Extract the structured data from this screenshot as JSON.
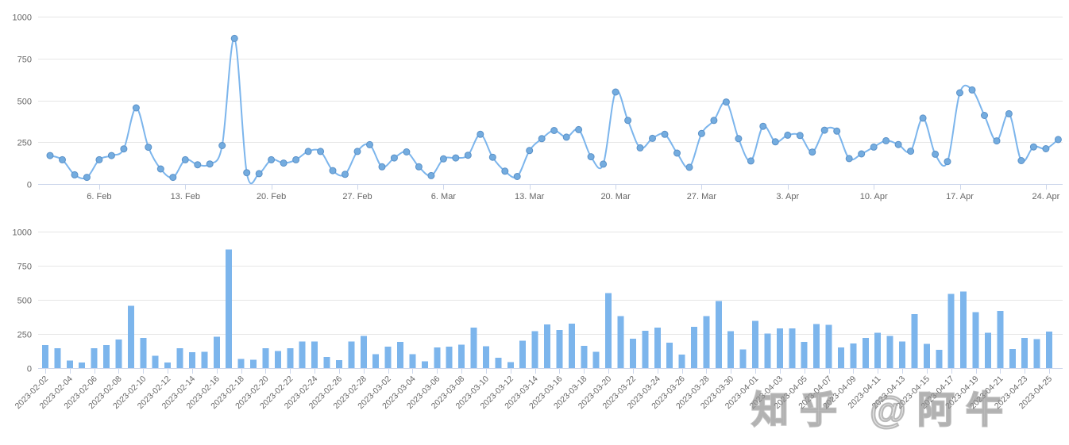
{
  "watermark": {
    "text": "知乎 @阿牛"
  },
  "colors": {
    "series_line": "#7cb5ec",
    "marker_fill": "#74acdf",
    "marker_stroke": "#5a91c8",
    "bar_fill": "#7cb5ec",
    "gridline": "#e6e6e6",
    "axis_line": "#ccd6eb",
    "tick_label": "#666666",
    "background": "#ffffff",
    "watermark_gray": "#9e9e9e"
  },
  "chart_data": [
    {
      "type": "line",
      "title": "",
      "smooth": true,
      "marker": "circle",
      "legend_position": "none",
      "grid": true,
      "ylim": [
        0,
        1000
      ],
      "yticks": [
        0,
        250,
        500,
        750,
        1000
      ],
      "ytick_labels": [
        "0",
        "250",
        "500",
        "750",
        "1000"
      ],
      "xtick_labels": [
        "6. Feb",
        "13. Feb",
        "20. Feb",
        "27. Feb",
        "6. Mar",
        "13. Mar",
        "20. Mar",
        "27. Mar",
        "3. Apr",
        "10. Apr",
        "17. Apr",
        "24. Apr"
      ],
      "xtick_day_indices": [
        4,
        11,
        18,
        25,
        32,
        39,
        46,
        53,
        60,
        67,
        74,
        81
      ],
      "dates": [
        "2023-02-02",
        "2023-02-03",
        "2023-02-04",
        "2023-02-05",
        "2023-02-06",
        "2023-02-07",
        "2023-02-08",
        "2023-02-09",
        "2023-02-10",
        "2023-02-11",
        "2023-02-12",
        "2023-02-13",
        "2023-02-14",
        "2023-02-15",
        "2023-02-16",
        "2023-02-17",
        "2023-02-18",
        "2023-02-19",
        "2023-02-20",
        "2023-02-21",
        "2023-02-22",
        "2023-02-23",
        "2023-02-24",
        "2023-02-25",
        "2023-02-26",
        "2023-02-27",
        "2023-02-28",
        "2023-03-01",
        "2023-03-02",
        "2023-03-03",
        "2023-03-04",
        "2023-03-05",
        "2023-03-06",
        "2023-03-07",
        "2023-03-08",
        "2023-03-09",
        "2023-03-10",
        "2023-03-11",
        "2023-03-12",
        "2023-03-13",
        "2023-03-14",
        "2023-03-15",
        "2023-03-16",
        "2023-03-17",
        "2023-03-18",
        "2023-03-19",
        "2023-03-20",
        "2023-03-21",
        "2023-03-22",
        "2023-03-23",
        "2023-03-24",
        "2023-03-25",
        "2023-03-26",
        "2023-03-27",
        "2023-03-28",
        "2023-03-29",
        "2023-03-30",
        "2023-03-31",
        "2023-04-01",
        "2023-04-02",
        "2023-04-03",
        "2023-04-04",
        "2023-04-05",
        "2023-04-06",
        "2023-04-07",
        "2023-04-08",
        "2023-04-09",
        "2023-04-10",
        "2023-04-11",
        "2023-04-12",
        "2023-04-13",
        "2023-04-14",
        "2023-04-15",
        "2023-04-16",
        "2023-04-17",
        "2023-04-18",
        "2023-04-19",
        "2023-04-20",
        "2023-04-21",
        "2023-04-22",
        "2023-04-23",
        "2023-04-24",
        "2023-04-25"
      ],
      "values": [
        170,
        145,
        55,
        40,
        145,
        170,
        210,
        455,
        220,
        90,
        40,
        145,
        115,
        120,
        230,
        870,
        68,
        62,
        145,
        125,
        145,
        195,
        195,
        80,
        58,
        195,
        235,
        103,
        156,
        192,
        103,
        50,
        150,
        156,
        172,
        297,
        160,
        77,
        45,
        200,
        271,
        320,
        280,
        325,
        163,
        119,
        550,
        380,
        216,
        273,
        297,
        185,
        100,
        302,
        380,
        490,
        271,
        138,
        345,
        252,
        292,
        290,
        191,
        322,
        316,
        152,
        180,
        221,
        259,
        236,
        196,
        394,
        178,
        134,
        545,
        562,
        410,
        258,
        420,
        140,
        222,
        211,
        266
      ]
    },
    {
      "type": "bar",
      "title": "",
      "legend_position": "none",
      "grid": true,
      "ylim": [
        0,
        1000
      ],
      "yticks": [
        0,
        250,
        500,
        750,
        1000
      ],
      "ytick_labels": [
        "0",
        "250",
        "500",
        "750",
        "1000"
      ],
      "xtick_labels": [
        "2023-02-02",
        "2023-02-04",
        "2023-02-06",
        "2023-02-08",
        "2023-02-10",
        "2023-02-12",
        "2023-02-14",
        "2023-02-16",
        "2023-02-18",
        "2023-02-20",
        "2023-02-22",
        "2023-02-24",
        "2023-02-26",
        "2023-02-28",
        "2023-03-02",
        "2023-03-04",
        "2023-03-06",
        "2023-03-08",
        "2023-03-10",
        "2023-03-12",
        "2023-03-14",
        "2023-03-16",
        "2023-03-18",
        "2023-03-20",
        "2023-03-22",
        "2023-03-24",
        "2023-03-26",
        "2023-03-28",
        "2023-03-30",
        "2023-04-01",
        "2023-04-03",
        "2023-04-05",
        "2023-04-07",
        "2023-04-09",
        "2023-04-11",
        "2023-04-13",
        "2023-04-15",
        "2023-04-17",
        "2023-04-19",
        "2023-04-21",
        "2023-04-23",
        "2023-04-25"
      ],
      "xtick_day_indices": [
        0,
        2,
        4,
        6,
        8,
        10,
        12,
        14,
        16,
        18,
        20,
        22,
        24,
        26,
        28,
        30,
        32,
        34,
        36,
        38,
        40,
        42,
        44,
        46,
        48,
        50,
        52,
        54,
        56,
        58,
        60,
        62,
        64,
        66,
        68,
        70,
        72,
        74,
        76,
        78,
        80,
        82
      ],
      "dates": [
        "2023-02-02",
        "2023-02-03",
        "2023-02-04",
        "2023-02-05",
        "2023-02-06",
        "2023-02-07",
        "2023-02-08",
        "2023-02-09",
        "2023-02-10",
        "2023-02-11",
        "2023-02-12",
        "2023-02-13",
        "2023-02-14",
        "2023-02-15",
        "2023-02-16",
        "2023-02-17",
        "2023-02-18",
        "2023-02-19",
        "2023-02-20",
        "2023-02-21",
        "2023-02-22",
        "2023-02-23",
        "2023-02-24",
        "2023-02-25",
        "2023-02-26",
        "2023-02-27",
        "2023-02-28",
        "2023-03-01",
        "2023-03-02",
        "2023-03-03",
        "2023-03-04",
        "2023-03-05",
        "2023-03-06",
        "2023-03-07",
        "2023-03-08",
        "2023-03-09",
        "2023-03-10",
        "2023-03-11",
        "2023-03-12",
        "2023-03-13",
        "2023-03-14",
        "2023-03-15",
        "2023-03-16",
        "2023-03-17",
        "2023-03-18",
        "2023-03-19",
        "2023-03-20",
        "2023-03-21",
        "2023-03-22",
        "2023-03-23",
        "2023-03-24",
        "2023-03-25",
        "2023-03-26",
        "2023-03-27",
        "2023-03-28",
        "2023-03-29",
        "2023-03-30",
        "2023-03-31",
        "2023-04-01",
        "2023-04-02",
        "2023-04-03",
        "2023-04-04",
        "2023-04-05",
        "2023-04-06",
        "2023-04-07",
        "2023-04-08",
        "2023-04-09",
        "2023-04-10",
        "2023-04-11",
        "2023-04-12",
        "2023-04-13",
        "2023-04-14",
        "2023-04-15",
        "2023-04-16",
        "2023-04-17",
        "2023-04-18",
        "2023-04-19",
        "2023-04-20",
        "2023-04-21",
        "2023-04-22",
        "2023-04-23",
        "2023-04-24",
        "2023-04-25"
      ],
      "values": [
        170,
        145,
        55,
        40,
        145,
        170,
        210,
        455,
        220,
        90,
        40,
        145,
        115,
        120,
        230,
        870,
        68,
        62,
        145,
        125,
        145,
        195,
        195,
        80,
        58,
        195,
        235,
        103,
        156,
        192,
        103,
        50,
        150,
        156,
        172,
        297,
        160,
        77,
        45,
        200,
        271,
        320,
        280,
        325,
        163,
        119,
        550,
        380,
        216,
        273,
        297,
        185,
        100,
        302,
        380,
        490,
        271,
        138,
        345,
        252,
        292,
        290,
        191,
        322,
        316,
        152,
        180,
        221,
        259,
        236,
        196,
        394,
        178,
        134,
        545,
        562,
        410,
        258,
        420,
        140,
        222,
        211,
        266
      ]
    }
  ]
}
